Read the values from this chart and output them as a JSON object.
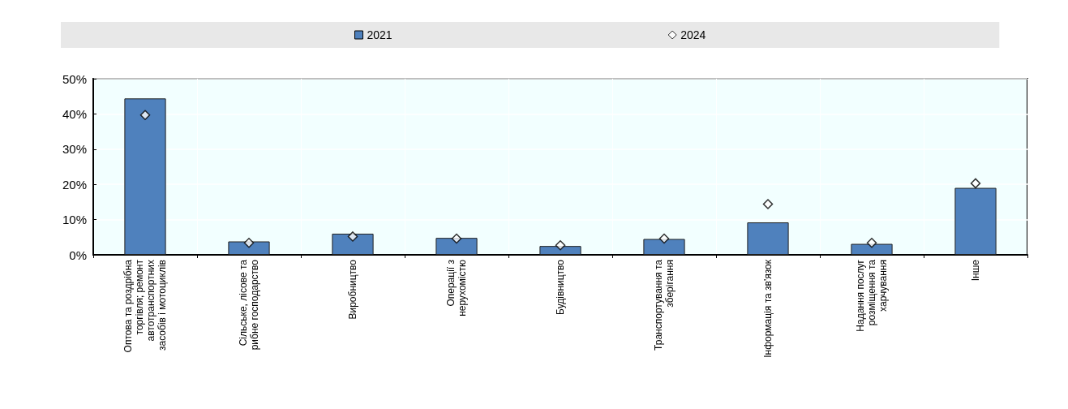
{
  "chart_data": {
    "type": "bar",
    "categories": [
      "Оптова та роздрібна торгівля; ремонт автотранспортних засобів і мотоциклів",
      "Сільське, лісове та рибне господарство",
      "Виробництво",
      "Операції з нерухомістю",
      "Будівництво",
      "Транспортування та зберігання",
      "Інформація та зв'язок",
      "Надання послуг розміщення та харчування",
      "Інше"
    ],
    "series": [
      {
        "name": "2021",
        "color": "#4f81bd",
        "values": [
          44.4,
          3.8,
          6.0,
          4.8,
          2.5,
          4.5,
          9.2,
          3.1,
          19.0
        ]
      },
      {
        "name": "2024",
        "type": "scatter",
        "color": "#ffffff",
        "marker": "diamond",
        "values": [
          39.7,
          3.4,
          5.2,
          4.6,
          2.7,
          4.6,
          14.4,
          3.4,
          20.3
        ]
      }
    ],
    "ylim": [
      0,
      50
    ],
    "yticks": [
      {
        "value": 0,
        "label": "0%"
      },
      {
        "value": 10,
        "label": "10%"
      },
      {
        "value": 20,
        "label": "20%"
      },
      {
        "value": 30,
        "label": "30%"
      },
      {
        "value": 40,
        "label": "40%"
      },
      {
        "value": 50,
        "label": "50%"
      }
    ],
    "grid": true,
    "legend": "top"
  }
}
